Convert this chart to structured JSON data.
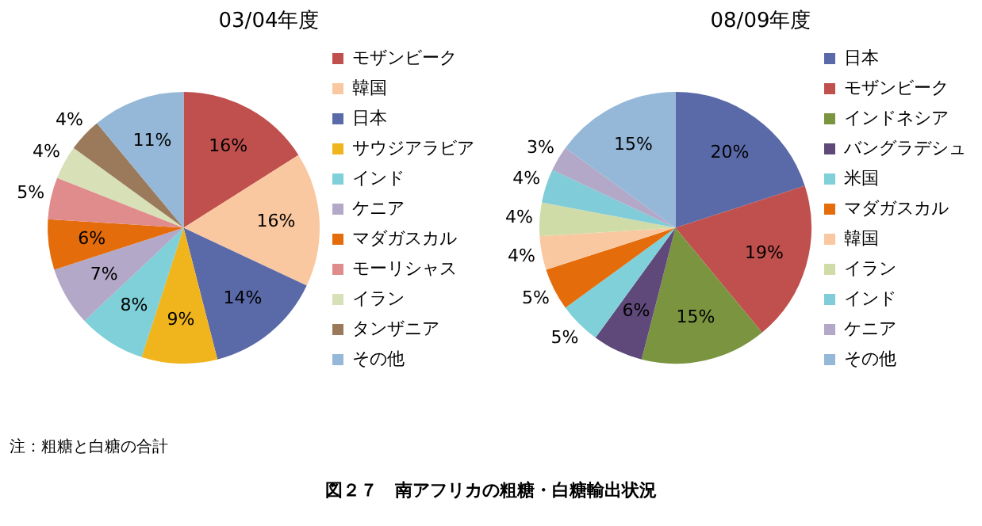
{
  "chart_data": [
    {
      "type": "pie",
      "title": "03/04年度",
      "legend": "right",
      "categories": [
        "モザンビーク",
        "韓国",
        "日本",
        "サウジアラビア",
        "インド",
        "ケニア",
        "マダガスカル",
        "モーリシャス",
        "イラン",
        "タンザニア",
        "その他"
      ],
      "values": [
        16,
        16,
        14,
        9,
        8,
        7,
        6,
        5,
        4,
        4,
        11
      ],
      "value_labels": [
        "16%",
        "16%",
        "14%",
        "9%",
        "8%",
        "7%",
        "6%",
        "5%",
        "4%",
        "4%",
        "11%"
      ],
      "colors": [
        "#c0504d",
        "#fac8a0",
        "#5a6aa8",
        "#f0b41c",
        "#7fd0d8",
        "#b3a8c8",
        "#e46c0a",
        "#e08c8c",
        "#d8e0b8",
        "#9a7a5a",
        "#95b8d8"
      ],
      "annotations": [
        "注：粗糖と白糖の合計",
        "図２７　南アフリカの粗糖・白糖輸出状況"
      ]
    },
    {
      "type": "pie",
      "title": "08/09年度",
      "legend": "right",
      "categories": [
        "日本",
        "モザンビーク",
        "インドネシア",
        "バングラデシュ",
        "米国",
        "マダガスカル",
        "韓国",
        "イラン",
        "インド",
        "ケニア",
        "その他"
      ],
      "values": [
        20,
        19,
        15,
        6,
        5,
        5,
        4,
        4,
        4,
        3,
        15
      ],
      "value_labels": [
        "20%",
        "19%",
        "15%",
        "6%",
        "5%",
        "5%",
        "4%",
        "4%",
        "4%",
        "3%",
        "15%"
      ],
      "colors": [
        "#5a6aa8",
        "#c0504d",
        "#7a9440",
        "#5f497a",
        "#7fd0d8",
        "#e46c0a",
        "#fac8a0",
        "#d0dca8",
        "#80ccd8",
        "#b3a8c8",
        "#95b8d8"
      ]
    }
  ]
}
